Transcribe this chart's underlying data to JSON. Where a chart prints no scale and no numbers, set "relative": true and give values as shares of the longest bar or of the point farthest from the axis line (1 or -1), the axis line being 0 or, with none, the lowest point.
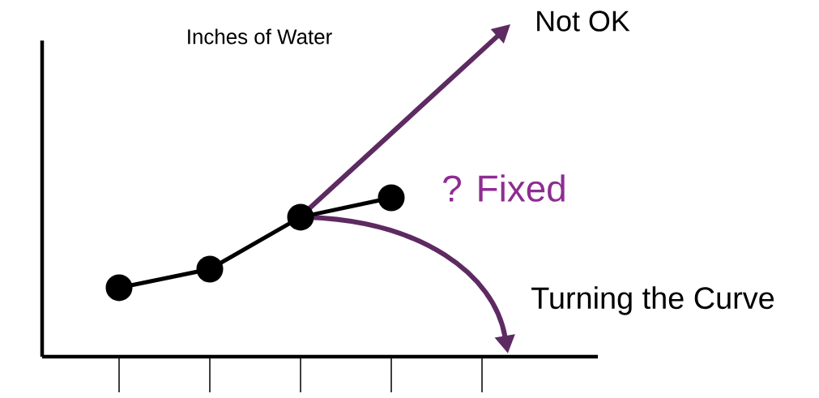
{
  "chart_data": {
    "type": "line",
    "title": "Inches of Water",
    "relative": true,
    "categories": [
      null,
      null,
      null,
      null,
      null
    ],
    "series": [
      {
        "color": "#000000",
        "values": [
          0.434,
          0.551,
          0.878,
          1,
          null
        ]
      }
    ],
    "marker": "circle",
    "line_style": "solid",
    "annotations": [
      "Not OK",
      "? Fixed",
      "Turning the Curve"
    ]
  }
}
